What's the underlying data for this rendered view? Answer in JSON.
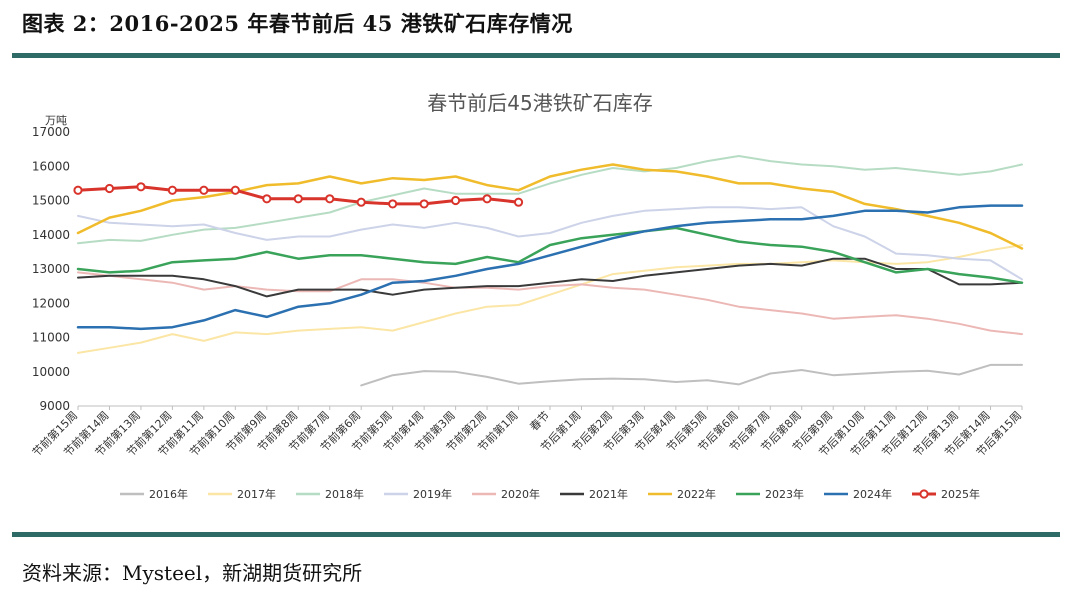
{
  "header_title": "图表 2：2016-2025 年春节前后 45 港铁矿石库存情况",
  "source_note": "资料来源：Mysteel，新湖期货研究所",
  "colors": {
    "rule": "#2e6b66"
  },
  "chart_data": {
    "type": "line",
    "title": "春节前后45港铁矿石库存",
    "ylabel": "万吨",
    "xlabel": "",
    "ylim": [
      9000,
      17000
    ],
    "yticks": [
      9000,
      10000,
      11000,
      12000,
      13000,
      14000,
      15000,
      16000,
      17000
    ],
    "grid": false,
    "legend_position": "bottom",
    "categories": [
      "节前第15周",
      "节前第14周",
      "节前第13周",
      "节前第12周",
      "节前第11周",
      "节前第10周",
      "节前第9周",
      "节前第8周",
      "节前第7周",
      "节前第6周",
      "节前第5周",
      "节前第4周",
      "节前第3周",
      "节前第2周",
      "节前第1周",
      "春节",
      "节后第1周",
      "节后第2周",
      "节后第3周",
      "节后第4周",
      "节后第5周",
      "节后第6周",
      "节后第7周",
      "节后第8周",
      "节后第9周",
      "节后第10周",
      "节后第11周",
      "节后第12周",
      "节后第13周",
      "节后第14周",
      "节后第15周"
    ],
    "series": [
      {
        "name": "2016年",
        "color": "#bfbfbf",
        "width": 2,
        "markers": false,
        "values": [
          null,
          null,
          null,
          null,
          null,
          null,
          null,
          null,
          null,
          9600,
          9900,
          10020,
          10000,
          9850,
          9650,
          9720,
          9780,
          9800,
          9780,
          9700,
          9750,
          9630,
          9950,
          10050,
          9900,
          9950,
          10000,
          10030,
          9920,
          10200,
          10200
        ]
      },
      {
        "name": "2017年",
        "color": "#fbe6a6",
        "width": 2,
        "markers": false,
        "values": [
          10550,
          10700,
          10850,
          11100,
          10900,
          11150,
          11100,
          11200,
          11250,
          11300,
          11200,
          11450,
          11700,
          11900,
          11950,
          12250,
          12550,
          12850,
          12950,
          13050,
          13100,
          13150,
          13150,
          13200,
          13250,
          13200,
          13150,
          13200,
          13350,
          13550,
          13700
        ]
      },
      {
        "name": "2018年",
        "color": "#b6dcc4",
        "width": 2,
        "markers": false,
        "values": [
          13750,
          13850,
          13820,
          14000,
          14150,
          14200,
          14350,
          14500,
          14650,
          14950,
          15150,
          15350,
          15200,
          15200,
          15200,
          15500,
          15750,
          15950,
          15850,
          15950,
          16150,
          16300,
          16150,
          16050,
          16000,
          15900,
          15950,
          15850,
          15750,
          15850,
          16050
        ]
      },
      {
        "name": "2019年",
        "color": "#cdd3e8",
        "width": 2,
        "markers": false,
        "values": [
          14550,
          14350,
          14300,
          14250,
          14300,
          14050,
          13850,
          13950,
          13950,
          14150,
          14300,
          14200,
          14350,
          14200,
          13950,
          14050,
          14350,
          14550,
          14700,
          14750,
          14800,
          14800,
          14750,
          14800,
          14250,
          13950,
          13450,
          13400,
          13300,
          13250,
          12700
        ]
      },
      {
        "name": "2020年",
        "color": "#ecb8b6",
        "width": 2,
        "markers": false,
        "values": [
          12900,
          12800,
          12700,
          12600,
          12400,
          12500,
          12400,
          12350,
          12350,
          12700,
          12700,
          12600,
          12450,
          12450,
          12400,
          12500,
          12550,
          12450,
          12400,
          12250,
          12100,
          11900,
          11800,
          11700,
          11550,
          11600,
          11650,
          11550,
          11400,
          11200,
          11100
        ]
      },
      {
        "name": "2021年",
        "color": "#3a3a3a",
        "width": 2,
        "markers": false,
        "values": [
          12750,
          12800,
          12800,
          12800,
          12700,
          12500,
          12200,
          12400,
          12400,
          12400,
          12250,
          12400,
          12450,
          12500,
          12500,
          12600,
          12700,
          12650,
          12800,
          12900,
          13000,
          13100,
          13150,
          13100,
          13300,
          13300,
          13000,
          13000,
          12550,
          12550,
          12600
        ]
      },
      {
        "name": "2022年",
        "color": "#f0bc2b",
        "width": 2.5,
        "markers": false,
        "values": [
          14050,
          14500,
          14700,
          15000,
          15100,
          15250,
          15450,
          15500,
          15700,
          15500,
          15650,
          15600,
          15700,
          15450,
          15300,
          15700,
          15900,
          16050,
          15900,
          15850,
          15700,
          15500,
          15500,
          15350,
          15250,
          14900,
          14750,
          14550,
          14350,
          14050,
          13600
        ]
      },
      {
        "name": "2023年",
        "color": "#3aa35a",
        "width": 2.5,
        "markers": false,
        "values": [
          13000,
          12900,
          12950,
          13200,
          13250,
          13300,
          13500,
          13300,
          13400,
          13400,
          13300,
          13200,
          13150,
          13350,
          13200,
          13700,
          13900,
          14000,
          14100,
          14200,
          14000,
          13800,
          13700,
          13650,
          13500,
          13200,
          12900,
          13000,
          12850,
          12750,
          12600
        ]
      },
      {
        "name": "2024年",
        "color": "#2b70b0",
        "width": 2.5,
        "markers": false,
        "values": [
          11300,
          11300,
          11250,
          11300,
          11500,
          11800,
          11600,
          11900,
          12000,
          12250,
          12600,
          12650,
          12800,
          13000,
          13150,
          13400,
          13650,
          13900,
          14100,
          14250,
          14350,
          14400,
          14450,
          14450,
          14550,
          14700,
          14700,
          14650,
          14800,
          14850,
          14850
        ]
      },
      {
        "name": "2025年",
        "color": "#d9342b",
        "width": 3,
        "markers": true,
        "values": [
          15300,
          15350,
          15400,
          15300,
          15300,
          15300,
          15050,
          15050,
          15050,
          14950,
          14900,
          14900,
          15000,
          15050,
          14950,
          null,
          null,
          null,
          null,
          null,
          null,
          null,
          null,
          null,
          null,
          null,
          null,
          null,
          null,
          null,
          null
        ]
      }
    ]
  }
}
